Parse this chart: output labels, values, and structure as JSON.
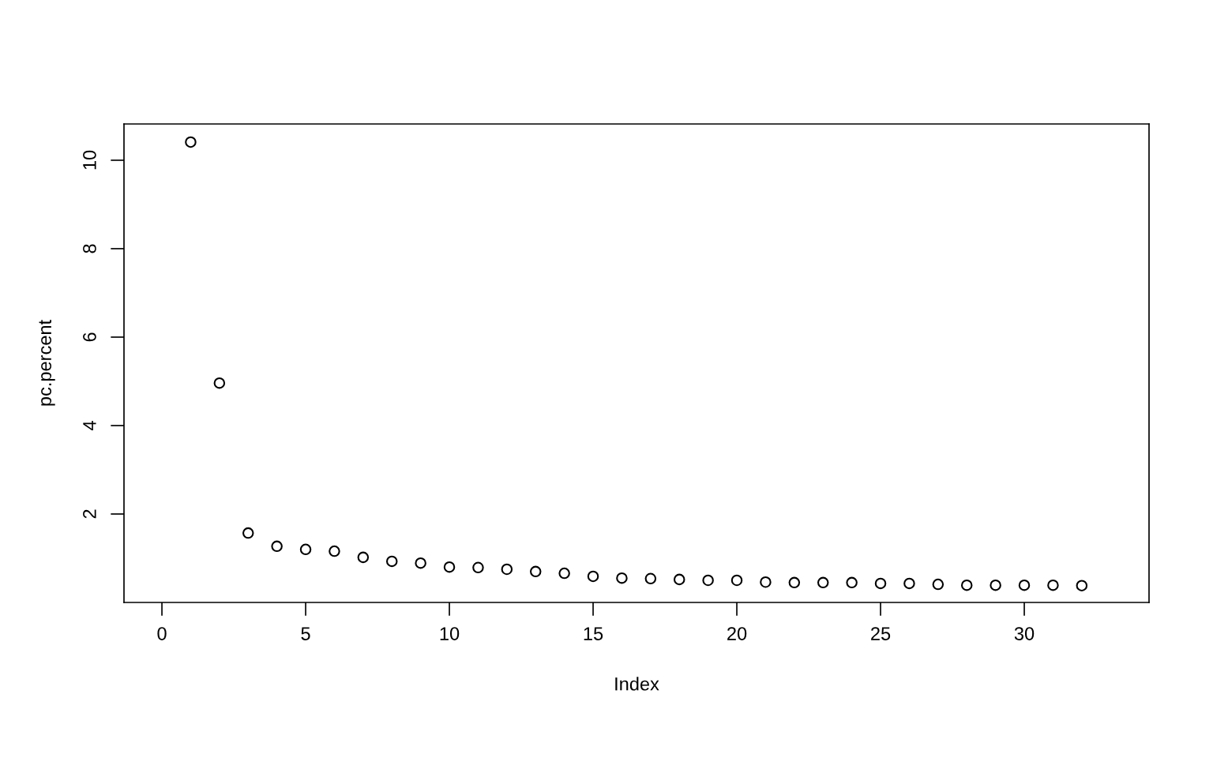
{
  "chart_data": {
    "type": "scatter",
    "xlabel": "Index",
    "ylabel": "pc.percent",
    "x": [
      1,
      2,
      3,
      4,
      5,
      6,
      7,
      8,
      9,
      10,
      11,
      12,
      13,
      14,
      15,
      16,
      17,
      18,
      19,
      20,
      21,
      22,
      23,
      24,
      25,
      26,
      27,
      28,
      29,
      30,
      31,
      32
    ],
    "values": [
      10.41,
      4.96,
      1.57,
      1.27,
      1.2,
      1.16,
      1.02,
      0.93,
      0.89,
      0.8,
      0.79,
      0.75,
      0.7,
      0.66,
      0.59,
      0.55,
      0.54,
      0.52,
      0.5,
      0.5,
      0.46,
      0.45,
      0.45,
      0.45,
      0.43,
      0.43,
      0.41,
      0.39,
      0.39,
      0.39,
      0.39,
      0.38
    ],
    "color": "#000000",
    "marker": "circle",
    "xlim": [
      -1.32,
      34.34
    ],
    "ylim": [
      0.0,
      10.82
    ],
    "xticks": [
      0,
      5,
      10,
      15,
      20,
      25,
      30
    ],
    "yticks": [
      2,
      4,
      6,
      8,
      10
    ],
    "grid": false,
    "legend": false
  }
}
